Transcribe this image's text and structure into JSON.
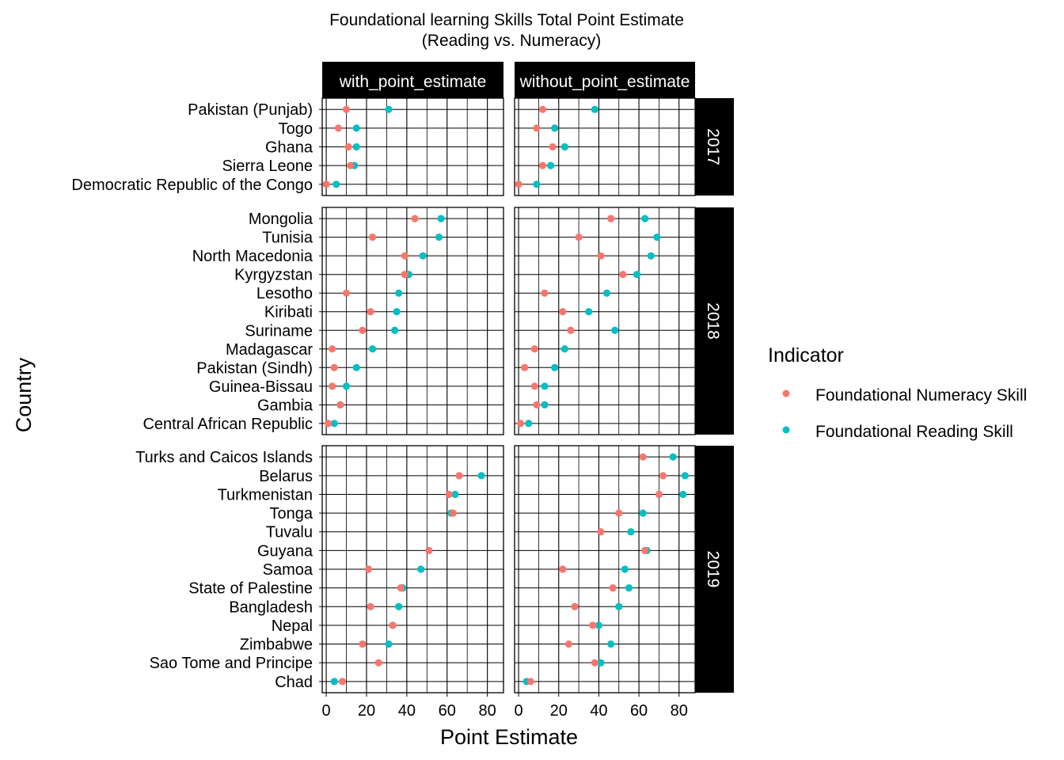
{
  "chart_data": {
    "type": "scatter",
    "title": "Foundational learning Skills Total Point Estimate",
    "subtitle": "(Reading vs. Numeracy)",
    "xlabel": "Point Estimate",
    "ylabel": "Country",
    "xlim": [
      -2,
      88
    ],
    "x_ticks": [
      0,
      20,
      40,
      60,
      80
    ],
    "x_tick_labels": [
      "0",
      "20",
      "40",
      "60",
      "80"
    ],
    "grid": true,
    "legend": {
      "title": "Indicator",
      "position": "right",
      "entries": [
        {
          "name": "Foundational Numeracy Skill",
          "color": "#F8766D"
        },
        {
          "name": "Foundational Reading Skill",
          "color": "#00BFC4"
        }
      ]
    },
    "facet_columns": [
      "with_point_estimate",
      "without_point_estimate"
    ],
    "facet_rows": [
      {
        "label": "2017",
        "countries": [
          "Pakistan (Punjab)",
          "Togo",
          "Ghana",
          "Sierra Leone",
          "Democratic Republic of the Congo"
        ],
        "panels": [
          {
            "numeracy": [
              10,
              6,
              11,
              12,
              0
            ],
            "reading": [
              31,
              15,
              15,
              14,
              5
            ]
          },
          {
            "numeracy": [
              12,
              9,
              17,
              12,
              0
            ],
            "reading": [
              38,
              18,
              23,
              16,
              9
            ]
          }
        ]
      },
      {
        "label": "2018",
        "countries": [
          "Mongolia",
          "Tunisia",
          "North Macedonia",
          "Kyrgyzstan",
          "Lesotho",
          "Kiribati",
          "Suriname",
          "Madagascar",
          "Pakistan (Sindh)",
          "Guinea-Bissau",
          "Gambia",
          "Central African Republic"
        ],
        "panels": [
          {
            "numeracy": [
              44,
              23,
              39,
              39,
              10,
              22,
              18,
              3,
              4,
              3,
              7,
              1
            ],
            "reading": [
              57,
              56,
              48,
              41,
              36,
              35,
              34,
              23,
              15,
              10,
              7,
              4
            ]
          },
          {
            "numeracy": [
              46,
              30,
              41,
              52,
              13,
              22,
              26,
              8,
              3,
              8,
              9,
              1
            ],
            "reading": [
              63,
              69,
              66,
              59,
              44,
              35,
              48,
              23,
              18,
              13,
              13,
              5
            ]
          }
        ]
      },
      {
        "label": "2019",
        "countries": [
          "Turks and Caicos Islands",
          "Belarus",
          "Turkmenistan",
          "Tonga",
          "Tuvalu",
          "Guyana",
          "Samoa",
          "State of Palestine",
          "Bangladesh",
          "Nepal",
          "Zimbabwe",
          "Sao Tome and Principe",
          "Chad"
        ],
        "panels": [
          {
            "numeracy": [
              null,
              66,
              61,
              63,
              null,
              51,
              21,
              37,
              22,
              33,
              18,
              26,
              8
            ],
            "reading": [
              null,
              77,
              64,
              62,
              null,
              51,
              47,
              38,
              36,
              33,
              31,
              null,
              4
            ]
          },
          {
            "numeracy": [
              62,
              72,
              70,
              50,
              41,
              63,
              22,
              47,
              28,
              37,
              25,
              38,
              6
            ],
            "reading": [
              77,
              83,
              82,
              62,
              56,
              64,
              53,
              55,
              50,
              40,
              46,
              41,
              4
            ]
          }
        ]
      }
    ]
  }
}
